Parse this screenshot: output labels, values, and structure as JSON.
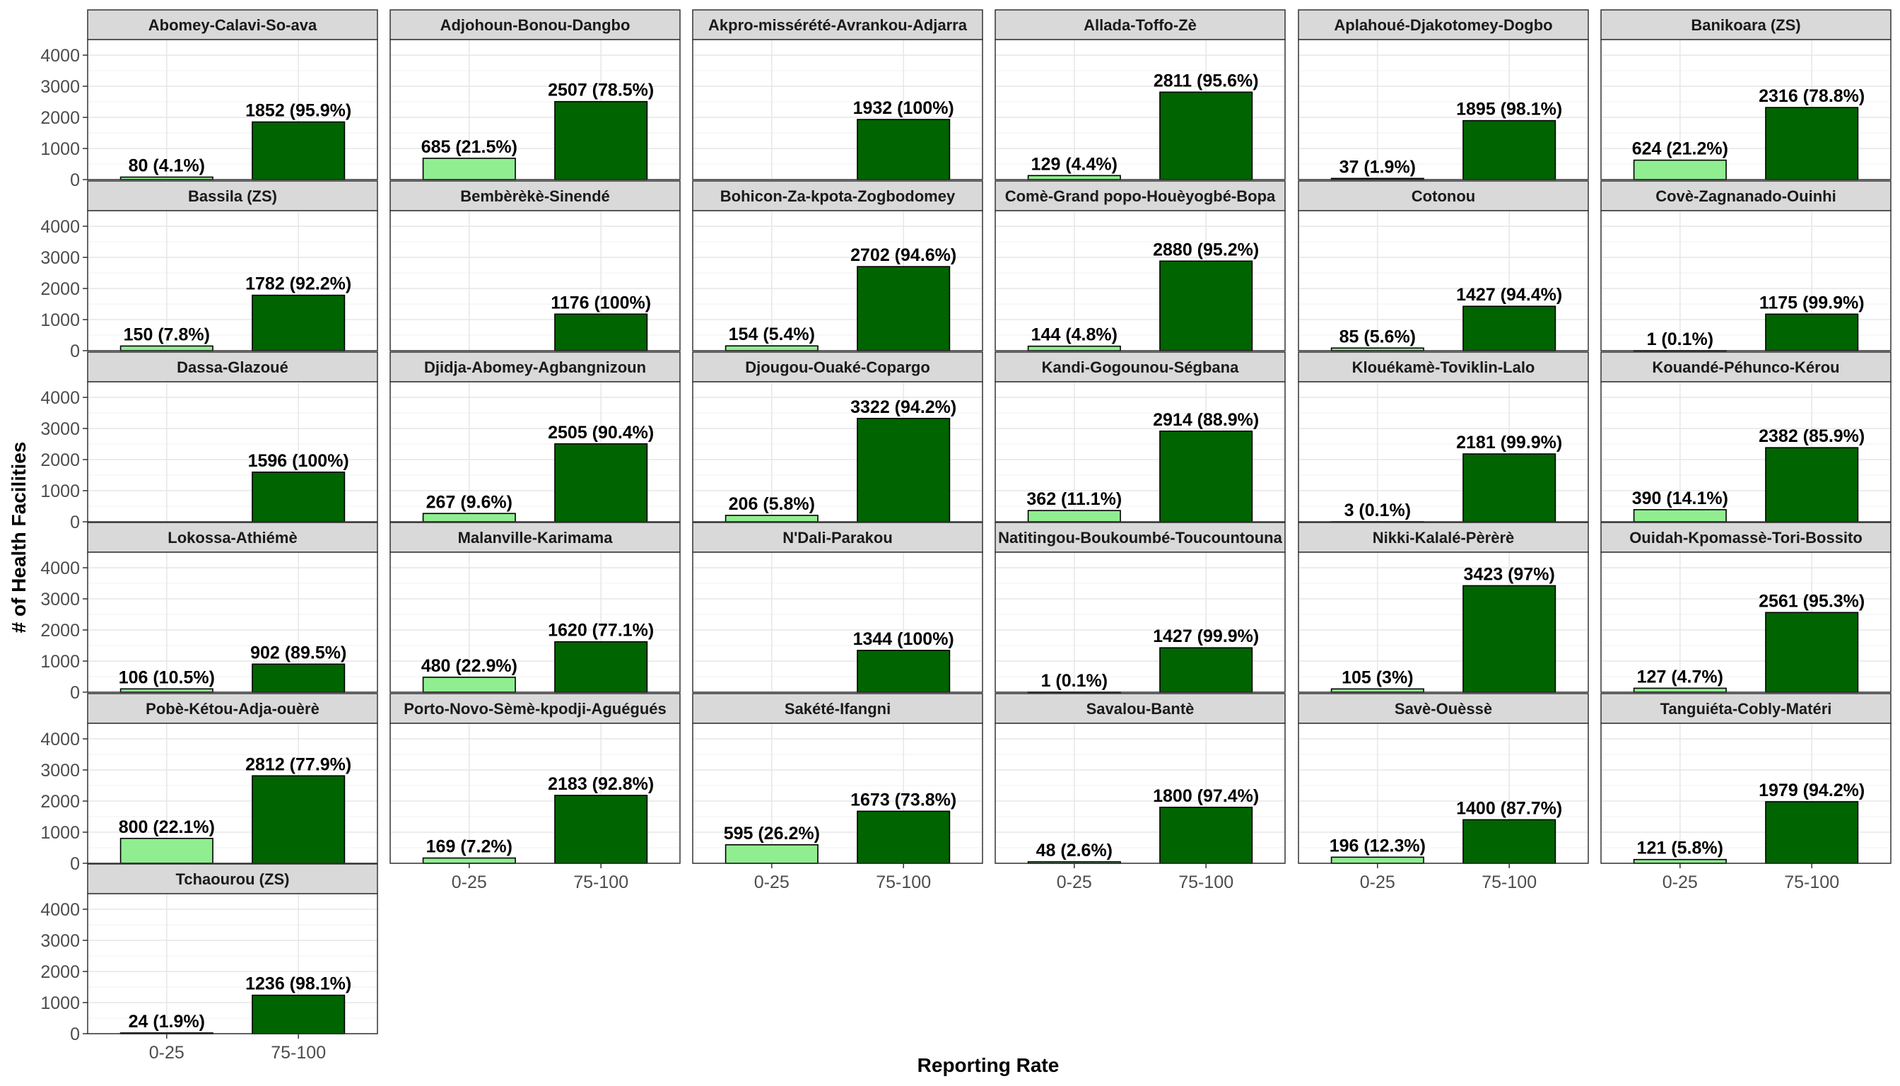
{
  "chart_data": {
    "type": "bar",
    "xlabel": "Reporting Rate",
    "ylabel": "# of Health Facilities",
    "categories": [
      "0-25",
      "75-100"
    ],
    "ylim": [
      0,
      4500
    ],
    "yticks": [
      0,
      1000,
      2000,
      3000,
      4000
    ],
    "grid": true,
    "colors": {
      "0-25": "#90ee90",
      "75-100": "#006400"
    },
    "panels": [
      {
        "name": "Abomey-Calavi-So-ava",
        "bars": [
          {
            "category": "0-25",
            "value": 80,
            "label": "80 (4.1%)"
          },
          {
            "category": "75-100",
            "value": 1852,
            "label": "1852 (95.9%)"
          }
        ]
      },
      {
        "name": "Adjohoun-Bonou-Dangbo",
        "bars": [
          {
            "category": "0-25",
            "value": 685,
            "label": "685 (21.5%)"
          },
          {
            "category": "75-100",
            "value": 2507,
            "label": "2507 (78.5%)"
          }
        ]
      },
      {
        "name": "Akpro-missérété-Avrankou-Adjarra",
        "bars": [
          {
            "category": "75-100",
            "value": 1932,
            "label": "1932 (100%)"
          }
        ]
      },
      {
        "name": "Allada-Toffo-Zè",
        "bars": [
          {
            "category": "0-25",
            "value": 129,
            "label": "129 (4.4%)"
          },
          {
            "category": "75-100",
            "value": 2811,
            "label": "2811 (95.6%)"
          }
        ]
      },
      {
        "name": "Aplahoué-Djakotomey-Dogbo",
        "bars": [
          {
            "category": "0-25",
            "value": 37,
            "label": "37 (1.9%)"
          },
          {
            "category": "75-100",
            "value": 1895,
            "label": "1895 (98.1%)"
          }
        ]
      },
      {
        "name": "Banikoara (ZS)",
        "bars": [
          {
            "category": "0-25",
            "value": 624,
            "label": "624 (21.2%)"
          },
          {
            "category": "75-100",
            "value": 2316,
            "label": "2316 (78.8%)"
          }
        ]
      },
      {
        "name": "Bassila (ZS)",
        "bars": [
          {
            "category": "0-25",
            "value": 150,
            "label": "150 (7.8%)"
          },
          {
            "category": "75-100",
            "value": 1782,
            "label": "1782 (92.2%)"
          }
        ]
      },
      {
        "name": "Bembèrèkè-Sinendé",
        "bars": [
          {
            "category": "75-100",
            "value": 1176,
            "label": "1176 (100%)"
          }
        ]
      },
      {
        "name": "Bohicon-Za-kpota-Zogbodomey",
        "bars": [
          {
            "category": "0-25",
            "value": 154,
            "label": "154 (5.4%)"
          },
          {
            "category": "75-100",
            "value": 2702,
            "label": "2702 (94.6%)"
          }
        ]
      },
      {
        "name": "Comè-Grand popo-Houèyogbé-Bopa",
        "bars": [
          {
            "category": "0-25",
            "value": 144,
            "label": "144 (4.8%)"
          },
          {
            "category": "75-100",
            "value": 2880,
            "label": "2880 (95.2%)"
          }
        ]
      },
      {
        "name": "Cotonou",
        "bars": [
          {
            "category": "0-25",
            "value": 85,
            "label": "85 (5.6%)"
          },
          {
            "category": "75-100",
            "value": 1427,
            "label": "1427 (94.4%)"
          }
        ]
      },
      {
        "name": "Covè-Zagnanado-Ouinhi",
        "bars": [
          {
            "category": "0-25",
            "value": 1,
            "label": "1 (0.1%)"
          },
          {
            "category": "75-100",
            "value": 1175,
            "label": "1175 (99.9%)"
          }
        ]
      },
      {
        "name": "Dassa-Glazoué",
        "bars": [
          {
            "category": "75-100",
            "value": 1596,
            "label": "1596 (100%)"
          }
        ]
      },
      {
        "name": "Djidja-Abomey-Agbangnizoun",
        "bars": [
          {
            "category": "0-25",
            "value": 267,
            "label": "267 (9.6%)"
          },
          {
            "category": "75-100",
            "value": 2505,
            "label": "2505 (90.4%)"
          }
        ]
      },
      {
        "name": "Djougou-Ouaké-Copargo",
        "bars": [
          {
            "category": "0-25",
            "value": 206,
            "label": "206 (5.8%)"
          },
          {
            "category": "75-100",
            "value": 3322,
            "label": "3322 (94.2%)"
          }
        ]
      },
      {
        "name": "Kandi-Gogounou-Ségbana",
        "bars": [
          {
            "category": "0-25",
            "value": 362,
            "label": "362 (11.1%)"
          },
          {
            "category": "75-100",
            "value": 2914,
            "label": "2914 (88.9%)"
          }
        ]
      },
      {
        "name": "Klouékamè-Toviklin-Lalo",
        "bars": [
          {
            "category": "0-25",
            "value": 3,
            "label": "3 (0.1%)"
          },
          {
            "category": "75-100",
            "value": 2181,
            "label": "2181 (99.9%)"
          }
        ]
      },
      {
        "name": "Kouandé-Péhunco-Kérou",
        "bars": [
          {
            "category": "0-25",
            "value": 390,
            "label": "390 (14.1%)"
          },
          {
            "category": "75-100",
            "value": 2382,
            "label": "2382 (85.9%)"
          }
        ]
      },
      {
        "name": "Lokossa-Athiémè",
        "bars": [
          {
            "category": "0-25",
            "value": 106,
            "label": "106 (10.5%)"
          },
          {
            "category": "75-100",
            "value": 902,
            "label": "902 (89.5%)"
          }
        ]
      },
      {
        "name": "Malanville-Karimama",
        "bars": [
          {
            "category": "0-25",
            "value": 480,
            "label": "480 (22.9%)"
          },
          {
            "category": "75-100",
            "value": 1620,
            "label": "1620 (77.1%)"
          }
        ]
      },
      {
        "name": "N'Dali-Parakou",
        "bars": [
          {
            "category": "75-100",
            "value": 1344,
            "label": "1344 (100%)"
          }
        ]
      },
      {
        "name": "Natitingou-Boukoumbé-Toucountouna",
        "bars": [
          {
            "category": "0-25",
            "value": 1,
            "label": "1 (0.1%)"
          },
          {
            "category": "75-100",
            "value": 1427,
            "label": "1427 (99.9%)"
          }
        ]
      },
      {
        "name": "Nikki-Kalalé-Pèrèrè",
        "bars": [
          {
            "category": "0-25",
            "value": 105,
            "label": "105 (3%)"
          },
          {
            "category": "75-100",
            "value": 3423,
            "label": "3423 (97%)"
          }
        ]
      },
      {
        "name": "Ouidah-Kpomassè-Tori-Bossito",
        "bars": [
          {
            "category": "0-25",
            "value": 127,
            "label": "127 (4.7%)"
          },
          {
            "category": "75-100",
            "value": 2561,
            "label": "2561 (95.3%)"
          }
        ]
      },
      {
        "name": "Pobè-Kétou-Adja-ouèrè",
        "bars": [
          {
            "category": "0-25",
            "value": 800,
            "label": "800 (22.1%)"
          },
          {
            "category": "75-100",
            "value": 2812,
            "label": "2812 (77.9%)"
          }
        ]
      },
      {
        "name": "Porto-Novo-Sèmè-kpodji-Aguégués",
        "bars": [
          {
            "category": "0-25",
            "value": 169,
            "label": "169 (7.2%)"
          },
          {
            "category": "75-100",
            "value": 2183,
            "label": "2183 (92.8%)"
          }
        ]
      },
      {
        "name": "Sakété-Ifangni",
        "bars": [
          {
            "category": "0-25",
            "value": 595,
            "label": "595 (26.2%)"
          },
          {
            "category": "75-100",
            "value": 1673,
            "label": "1673 (73.8%)"
          }
        ]
      },
      {
        "name": "Savalou-Bantè",
        "bars": [
          {
            "category": "0-25",
            "value": 48,
            "label": "48 (2.6%)"
          },
          {
            "category": "75-100",
            "value": 1800,
            "label": "1800 (97.4%)"
          }
        ]
      },
      {
        "name": "Savè-Ouèssè",
        "bars": [
          {
            "category": "0-25",
            "value": 196,
            "label": "196 (12.3%)"
          },
          {
            "category": "75-100",
            "value": 1400,
            "label": "1400 (87.7%)"
          }
        ]
      },
      {
        "name": "Tanguiéta-Cobly-Matéri",
        "bars": [
          {
            "category": "0-25",
            "value": 121,
            "label": "121 (5.8%)"
          },
          {
            "category": "75-100",
            "value": 1979,
            "label": "1979 (94.2%)"
          }
        ]
      },
      {
        "name": "Tchaourou (ZS)",
        "bars": [
          {
            "category": "0-25",
            "value": 24,
            "label": "24 (1.9%)"
          },
          {
            "category": "75-100",
            "value": 1236,
            "label": "1236 (98.1%)"
          }
        ]
      }
    ]
  }
}
